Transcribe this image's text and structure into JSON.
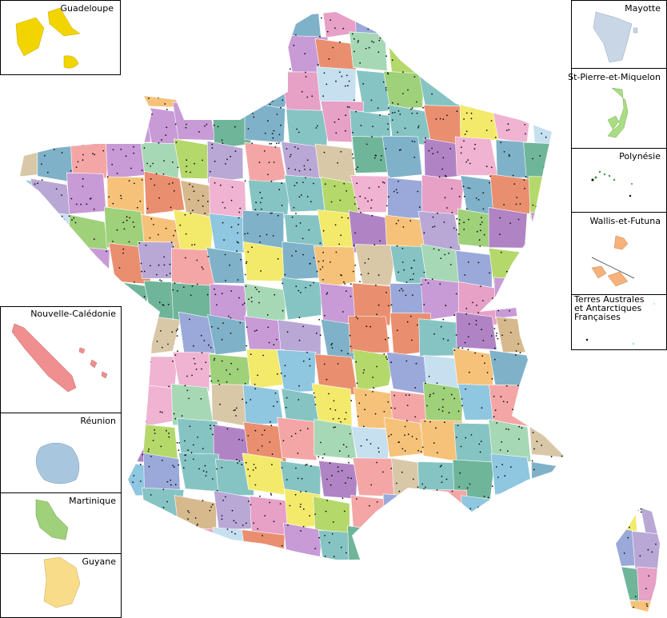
{
  "insets": [
    {
      "label": "Guadeloupe"
    },
    {
      "label": "Mayotte"
    },
    {
      "label": "St-Pierre-et-Miquelon"
    },
    {
      "label": "Polynésie"
    },
    {
      "label": "Wallis-et-Futuna"
    },
    {
      "label_lines": [
        "Terres Australes",
        "et Antarctiques",
        "Françaises"
      ]
    },
    {
      "label": "Nouvelle-Calédonie"
    },
    {
      "label": "Réunion"
    },
    {
      "label": "Martinique"
    },
    {
      "label": "Guyane"
    }
  ]
}
